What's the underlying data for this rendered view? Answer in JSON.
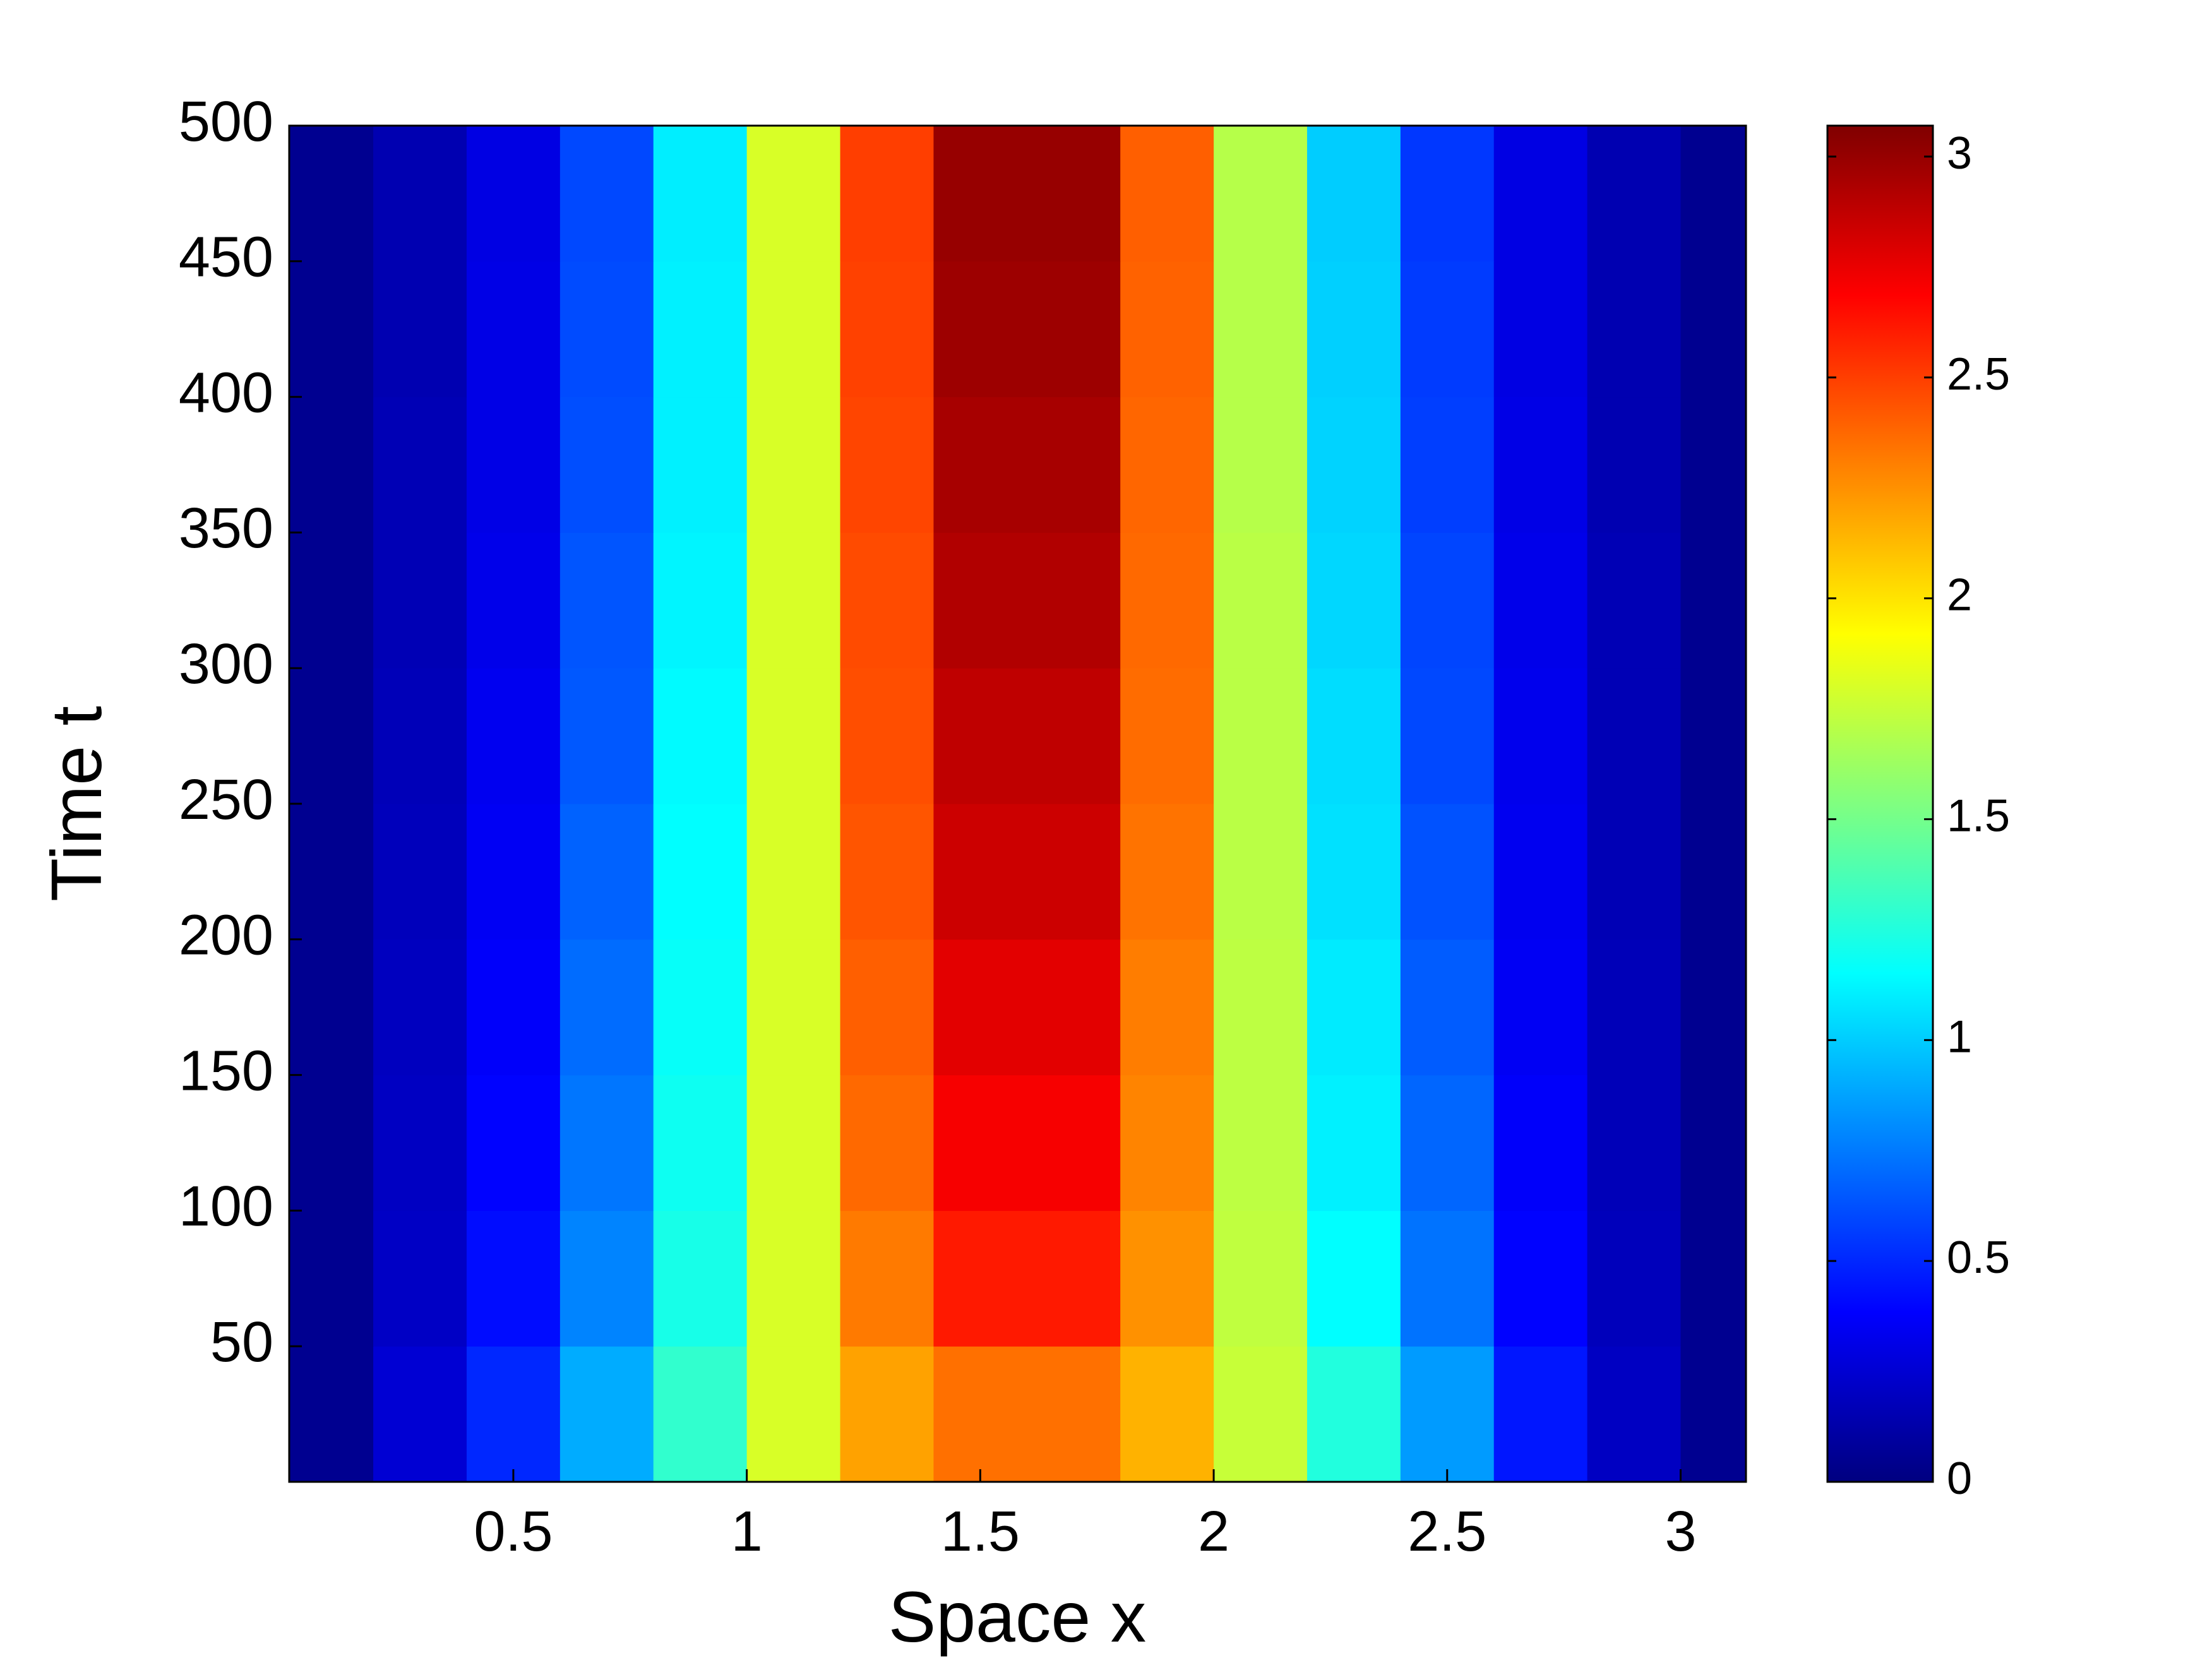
{
  "chart_data": {
    "type": "heatmap",
    "xlabel": "Space x",
    "ylabel": "Time t",
    "colormap": "jet",
    "x": [
      0.1,
      0.3,
      0.5,
      0.7,
      0.9,
      1.1,
      1.3,
      1.5,
      1.7,
      1.9,
      2.1,
      2.3,
      2.5,
      2.7,
      2.9,
      3.1
    ],
    "y": [
      25,
      75,
      125,
      175,
      225,
      275,
      325,
      375,
      425,
      475
    ],
    "values": [
      [
        0.05,
        0.25,
        0.5,
        0.9,
        1.3,
        1.8,
        2.2,
        2.35,
        2.35,
        2.15,
        1.75,
        1.25,
        0.85,
        0.45,
        0.2,
        0.05
      ],
      [
        0.05,
        0.21,
        0.42,
        0.78,
        1.22,
        1.8,
        2.32,
        2.61,
        2.61,
        2.25,
        1.73,
        1.15,
        0.73,
        0.39,
        0.18,
        0.05
      ],
      [
        0.05,
        0.2,
        0.39,
        0.74,
        1.19,
        1.8,
        2.37,
        2.71,
        2.71,
        2.29,
        1.72,
        1.11,
        0.69,
        0.37,
        0.17,
        0.05
      ],
      [
        0.05,
        0.19,
        0.37,
        0.71,
        1.17,
        1.8,
        2.4,
        2.77,
        2.77,
        2.31,
        1.72,
        1.09,
        0.66,
        0.35,
        0.17,
        0.05
      ],
      [
        0.05,
        0.18,
        0.35,
        0.68,
        1.15,
        1.8,
        2.43,
        2.84,
        2.84,
        2.34,
        1.71,
        1.06,
        0.63,
        0.34,
        0.16,
        0.05
      ],
      [
        0.05,
        0.17,
        0.34,
        0.65,
        1.14,
        1.8,
        2.45,
        2.88,
        2.88,
        2.36,
        1.71,
        1.05,
        0.6,
        0.33,
        0.16,
        0.05
      ],
      [
        0.05,
        0.16,
        0.32,
        0.64,
        1.12,
        1.8,
        2.46,
        2.92,
        2.92,
        2.37,
        1.71,
        1.03,
        0.59,
        0.32,
        0.16,
        0.05
      ],
      [
        0.05,
        0.16,
        0.31,
        0.62,
        1.11,
        1.8,
        2.48,
        2.95,
        2.95,
        2.38,
        1.7,
        1.02,
        0.57,
        0.31,
        0.15,
        0.05
      ],
      [
        0.05,
        0.15,
        0.31,
        0.61,
        1.11,
        1.8,
        2.49,
        2.98,
        2.98,
        2.39,
        1.7,
        1.01,
        0.56,
        0.3,
        0.15,
        0.05
      ],
      [
        0.05,
        0.15,
        0.3,
        0.6,
        1.1,
        1.8,
        2.5,
        3.0,
        3.0,
        2.4,
        1.7,
        1.0,
        0.55,
        0.3,
        0.15,
        0.05
      ]
    ],
    "xlim": [
      0.02,
      3.14
    ],
    "xticks": [
      0.5,
      1,
      1.5,
      2,
      2.5,
      3
    ],
    "ylim": [
      0,
      500
    ],
    "yticks": [
      50,
      100,
      150,
      200,
      250,
      300,
      350,
      400,
      450,
      500
    ],
    "clim": [
      0,
      3.07
    ],
    "colorbar_ticks": [
      0,
      0.5,
      1,
      1.5,
      2,
      2.5,
      3
    ]
  }
}
